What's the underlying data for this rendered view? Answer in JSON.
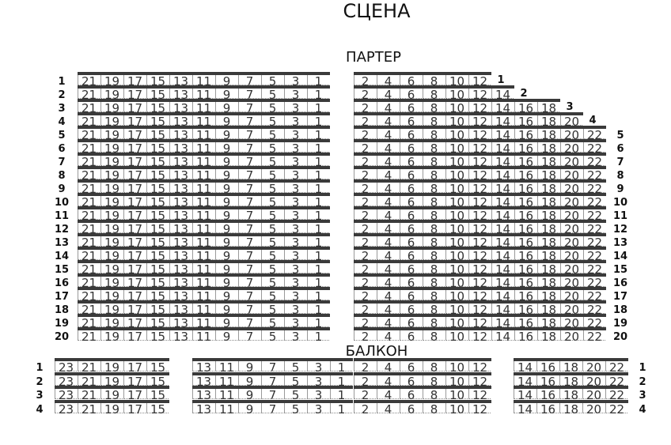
{
  "stage_label": "СЦЕНА",
  "parter": {
    "title": "ПАРТЕР",
    "rows": [
      {
        "row": "1",
        "left": [
          21,
          19,
          17,
          15,
          13,
          11,
          9,
          7,
          5,
          3,
          1
        ],
        "right": [
          2,
          4,
          6,
          8,
          10,
          12
        ]
      },
      {
        "row": "2",
        "left": [
          21,
          19,
          17,
          15,
          13,
          11,
          9,
          7,
          5,
          3,
          1
        ],
        "right": [
          2,
          4,
          6,
          8,
          10,
          12,
          14
        ]
      },
      {
        "row": "3",
        "left": [
          21,
          19,
          17,
          15,
          13,
          11,
          9,
          7,
          5,
          3,
          1
        ],
        "right": [
          2,
          4,
          6,
          8,
          10,
          12,
          14,
          16,
          18
        ]
      },
      {
        "row": "4",
        "left": [
          21,
          19,
          17,
          15,
          13,
          11,
          9,
          7,
          5,
          3,
          1
        ],
        "right": [
          2,
          4,
          6,
          8,
          10,
          12,
          14,
          16,
          18,
          20
        ]
      },
      {
        "row": "5",
        "left": [
          21,
          19,
          17,
          15,
          13,
          11,
          9,
          7,
          5,
          3,
          1
        ],
        "right": [
          2,
          4,
          6,
          8,
          10,
          12,
          14,
          16,
          18,
          20,
          22
        ]
      },
      {
        "row": "6",
        "left": [
          21,
          19,
          17,
          15,
          13,
          11,
          9,
          7,
          5,
          3,
          1
        ],
        "right": [
          2,
          4,
          6,
          8,
          10,
          12,
          14,
          16,
          18,
          20,
          22
        ]
      },
      {
        "row": "7",
        "left": [
          21,
          19,
          17,
          15,
          13,
          11,
          9,
          7,
          5,
          3,
          1
        ],
        "right": [
          2,
          4,
          6,
          8,
          10,
          12,
          14,
          16,
          18,
          20,
          22
        ]
      },
      {
        "row": "8",
        "left": [
          21,
          19,
          17,
          15,
          13,
          11,
          9,
          7,
          5,
          3,
          1
        ],
        "right": [
          2,
          4,
          6,
          8,
          10,
          12,
          14,
          16,
          18,
          20,
          22
        ]
      },
      {
        "row": "9",
        "left": [
          21,
          19,
          17,
          15,
          13,
          11,
          9,
          7,
          5,
          3,
          1
        ],
        "right": [
          2,
          4,
          6,
          8,
          10,
          12,
          14,
          16,
          18,
          20,
          22
        ]
      },
      {
        "row": "10",
        "left": [
          21,
          19,
          17,
          15,
          13,
          11,
          9,
          7,
          5,
          3,
          1
        ],
        "right": [
          2,
          4,
          6,
          8,
          10,
          12,
          14,
          16,
          18,
          20,
          22
        ]
      },
      {
        "row": "11",
        "left": [
          21,
          19,
          17,
          15,
          13,
          11,
          9,
          7,
          5,
          3,
          1
        ],
        "right": [
          2,
          4,
          6,
          8,
          10,
          12,
          14,
          16,
          18,
          20,
          22
        ]
      },
      {
        "row": "12",
        "left": [
          21,
          19,
          17,
          15,
          13,
          11,
          9,
          7,
          5,
          3,
          1
        ],
        "right": [
          2,
          4,
          6,
          8,
          10,
          12,
          14,
          16,
          18,
          20,
          22
        ]
      },
      {
        "row": "13",
        "left": [
          21,
          19,
          17,
          15,
          13,
          11,
          9,
          7,
          5,
          3,
          1
        ],
        "right": [
          2,
          4,
          6,
          8,
          10,
          12,
          14,
          16,
          18,
          20,
          22
        ]
      },
      {
        "row": "14",
        "left": [
          21,
          19,
          17,
          15,
          13,
          11,
          9,
          7,
          5,
          3,
          1
        ],
        "right": [
          2,
          4,
          6,
          8,
          10,
          12,
          14,
          16,
          18,
          20,
          22
        ]
      },
      {
        "row": "15",
        "left": [
          21,
          19,
          17,
          15,
          13,
          11,
          9,
          7,
          5,
          3,
          1
        ],
        "right": [
          2,
          4,
          6,
          8,
          10,
          12,
          14,
          16,
          18,
          20,
          22
        ]
      },
      {
        "row": "16",
        "left": [
          21,
          19,
          17,
          15,
          13,
          11,
          9,
          7,
          5,
          3,
          1
        ],
        "right": [
          2,
          4,
          6,
          8,
          10,
          12,
          14,
          16,
          18,
          20,
          22
        ]
      },
      {
        "row": "17",
        "left": [
          21,
          19,
          17,
          15,
          13,
          11,
          9,
          7,
          5,
          3,
          1
        ],
        "right": [
          2,
          4,
          6,
          8,
          10,
          12,
          14,
          16,
          18,
          20,
          22
        ]
      },
      {
        "row": "18",
        "left": [
          21,
          19,
          17,
          15,
          13,
          11,
          9,
          7,
          5,
          3,
          1
        ],
        "right": [
          2,
          4,
          6,
          8,
          10,
          12,
          14,
          16,
          18,
          20,
          22
        ]
      },
      {
        "row": "19",
        "left": [
          21,
          19,
          17,
          15,
          13,
          11,
          9,
          7,
          5,
          3,
          1
        ],
        "right": [
          2,
          4,
          6,
          8,
          10,
          12,
          14,
          16,
          18,
          20,
          22
        ]
      },
      {
        "row": "20",
        "left": [
          21,
          19,
          17,
          15,
          13,
          11,
          9,
          7,
          5,
          3,
          1
        ],
        "right": [
          2,
          4,
          6,
          8,
          10,
          12,
          14,
          16,
          18,
          20,
          22
        ]
      }
    ]
  },
  "balcon": {
    "title": "БАЛКОН",
    "rows": [
      {
        "row": "1",
        "left": [
          23,
          21,
          19,
          17,
          15
        ],
        "center_left": [
          13,
          11,
          9,
          7,
          5,
          3,
          1
        ],
        "center_right": [
          2,
          4,
          6,
          8,
          10,
          12
        ],
        "right": [
          14,
          16,
          18,
          20,
          22
        ]
      },
      {
        "row": "2",
        "left": [
          23,
          21,
          19,
          17,
          15
        ],
        "center_left": [
          13,
          11,
          9,
          7,
          5,
          3,
          1
        ],
        "center_right": [
          2,
          4,
          6,
          8,
          10,
          12
        ],
        "right": [
          14,
          16,
          18,
          20,
          22
        ]
      },
      {
        "row": "3",
        "left": [
          23,
          21,
          19,
          17,
          15
        ],
        "center_left": [
          13,
          11,
          9,
          7,
          5,
          3,
          1
        ],
        "center_right": [
          2,
          4,
          6,
          8,
          10,
          12
        ],
        "right": [
          14,
          16,
          18,
          20,
          22
        ]
      },
      {
        "row": "4",
        "left": [
          23,
          21,
          19,
          17,
          15
        ],
        "center_left": [
          13,
          11,
          9,
          7,
          5,
          3,
          1
        ],
        "center_right": [
          2,
          4,
          6,
          8,
          10,
          12
        ],
        "right": [
          14,
          16,
          18,
          20,
          22
        ]
      }
    ]
  }
}
